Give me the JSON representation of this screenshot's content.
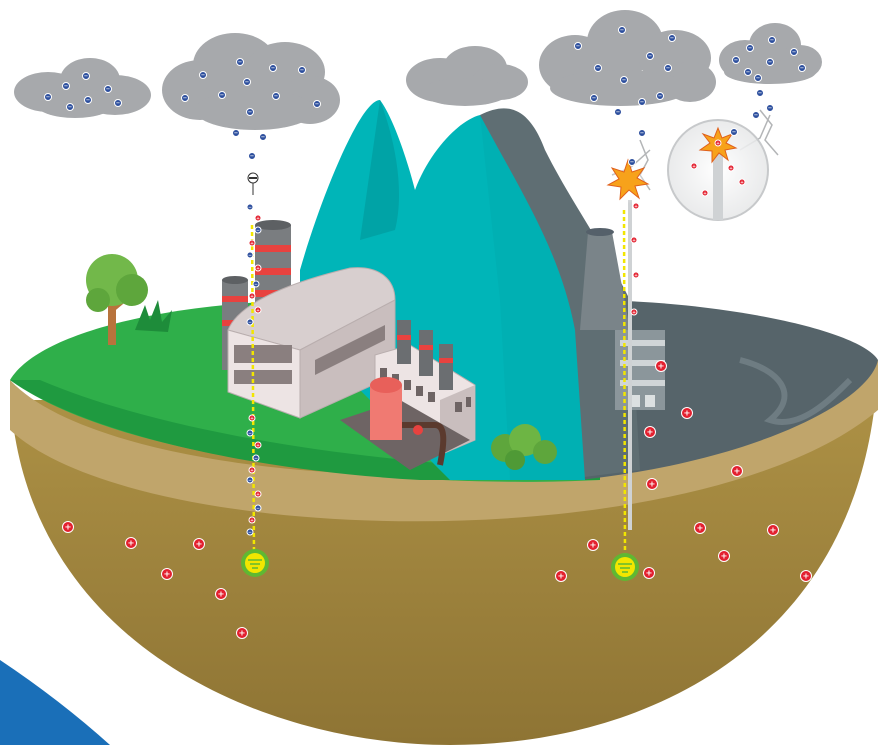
{
  "colors": {
    "sky": "#ffffff",
    "cloud": "#a7a9ac",
    "cloud_dark": "#939598",
    "grass": "#2faf4a",
    "grass_dark": "#1e8c3a",
    "soil_top": "#bfa36a",
    "soil": "#a8893f",
    "soil_dark": "#8f7535",
    "mountain": "#00b5b8",
    "mountain_dark": "#00999c",
    "polluted_rock": "#5f6e73",
    "polluted_ground": "#56646a",
    "factory_wall": "#e8dede",
    "factory_roof": "#d8cfcf",
    "chimney": "#7a7d80",
    "chimney_band": "#e8423f",
    "tank": "#f07a72",
    "negative_charge": "#2d4f9e",
    "positive_charge": "#e3202f",
    "ground_wire": "#f2e600",
    "ground_ring": "#5fb832",
    "ground_center": "#f2e600",
    "tree": "#72b84a",
    "trunk": "#b8733c",
    "corner_blue": "#1a6fb8"
  },
  "icons": {
    "negative": "minus-sign",
    "positive": "plus-sign",
    "ground_symbol": "earth-ground-icon",
    "spark": "lightning-spark-icon",
    "air_terminal": "lightning-rod-icon"
  },
  "glyphs": {
    "minus": "−",
    "plus": "+"
  }
}
